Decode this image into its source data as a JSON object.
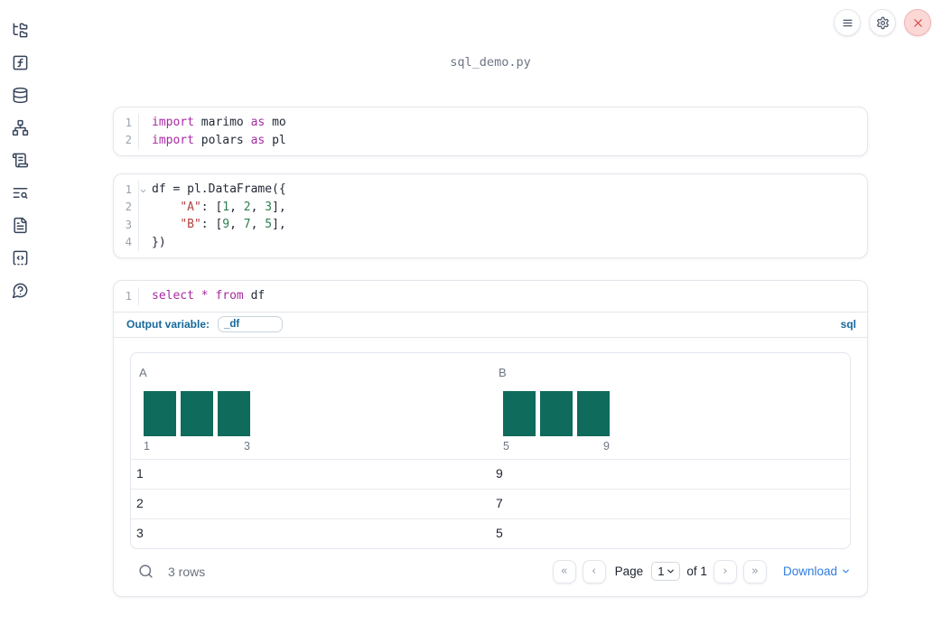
{
  "window": {
    "title": "sql_demo.py",
    "toolbar": {
      "menu_button": "notebook-menu",
      "settings_button": "settings",
      "shutdown_button": "shutdown"
    }
  },
  "sidebar": {
    "items": [
      {
        "name": "file-explorer",
        "icon": "folder-tree-icon"
      },
      {
        "name": "variables",
        "icon": "function-square-icon"
      },
      {
        "name": "data-sources",
        "icon": "database-icon"
      },
      {
        "name": "dependencies",
        "icon": "network-icon"
      },
      {
        "name": "logs",
        "icon": "scroll-text-icon"
      },
      {
        "name": "tracebacks",
        "icon": "text-search-icon"
      },
      {
        "name": "documentation",
        "icon": "file-text-icon"
      },
      {
        "name": "snippets",
        "icon": "code-square-icon"
      },
      {
        "name": "help",
        "icon": "help-circle-icon"
      }
    ]
  },
  "cells": [
    {
      "type": "code",
      "lines": [
        {
          "num": "1",
          "tokens": [
            [
              "kw",
              "import"
            ],
            [
              "pl",
              " marimo "
            ],
            [
              "kw",
              "as"
            ],
            [
              "pl",
              " mo"
            ]
          ]
        },
        {
          "num": "2",
          "tokens": [
            [
              "kw",
              "import"
            ],
            [
              "pl",
              " polars "
            ],
            [
              "kw",
              "as"
            ],
            [
              "pl",
              " pl"
            ]
          ]
        }
      ]
    },
    {
      "type": "code",
      "lines": [
        {
          "num": "1",
          "fold": true,
          "tokens": [
            [
              "pl",
              "df = pl.DataFrame({"
            ]
          ]
        },
        {
          "num": "2",
          "tokens": [
            [
              "pl",
              "    "
            ],
            [
              "str",
              "\"A\""
            ],
            [
              "pl",
              ": ["
            ],
            [
              "num",
              "1"
            ],
            [
              "pl",
              ", "
            ],
            [
              "num",
              "2"
            ],
            [
              "pl",
              ", "
            ],
            [
              "num",
              "3"
            ],
            [
              "pl",
              "],"
            ]
          ]
        },
        {
          "num": "3",
          "tokens": [
            [
              "pl",
              "    "
            ],
            [
              "str",
              "\"B\""
            ],
            [
              "pl",
              ": ["
            ],
            [
              "num",
              "9"
            ],
            [
              "pl",
              ", "
            ],
            [
              "num",
              "7"
            ],
            [
              "pl",
              ", "
            ],
            [
              "num",
              "5"
            ],
            [
              "pl",
              "],"
            ]
          ]
        },
        {
          "num": "4",
          "tokens": [
            [
              "pl",
              "})"
            ]
          ]
        }
      ]
    },
    {
      "type": "sql",
      "lines": [
        {
          "num": "1",
          "tokens": [
            [
              "kw",
              "select"
            ],
            [
              "pl",
              " "
            ],
            [
              "kw",
              "*"
            ],
            [
              "pl",
              " "
            ],
            [
              "kw",
              "from"
            ],
            [
              "pl",
              " df"
            ]
          ]
        }
      ],
      "output_variable_label": "Output variable:",
      "output_variable_value": "_df",
      "language_badge": "sql"
    }
  ],
  "table": {
    "columns": [
      {
        "name": "A",
        "histogram": {
          "type": "bar",
          "values": [
            1,
            1,
            1
          ],
          "x_labels": [
            "1",
            "3"
          ],
          "bar_color": "#0f6b5c"
        }
      },
      {
        "name": "B",
        "histogram": {
          "type": "bar",
          "values": [
            1,
            1,
            1
          ],
          "x_labels": [
            "5",
            "9"
          ],
          "bar_color": "#0f6b5c"
        }
      }
    ],
    "rows": [
      [
        "1",
        "9"
      ],
      [
        "2",
        "7"
      ],
      [
        "3",
        "5"
      ]
    ],
    "footer": {
      "row_count": "3 rows",
      "pagination": {
        "first": "«",
        "prev": "‹",
        "next": "›",
        "last": "»"
      },
      "page_label": "Page",
      "page_value": "1",
      "of_label": "of 1",
      "download_label": "Download"
    }
  },
  "colors": {
    "accent_blue": "#15689c",
    "link_blue": "#2e7ce0",
    "histogram_teal": "#0f6b5c",
    "keyword_purple": "#a62ba2",
    "string_red": "#b2423e",
    "number_green": "#2a7e50",
    "danger_red": "#d43d33"
  }
}
